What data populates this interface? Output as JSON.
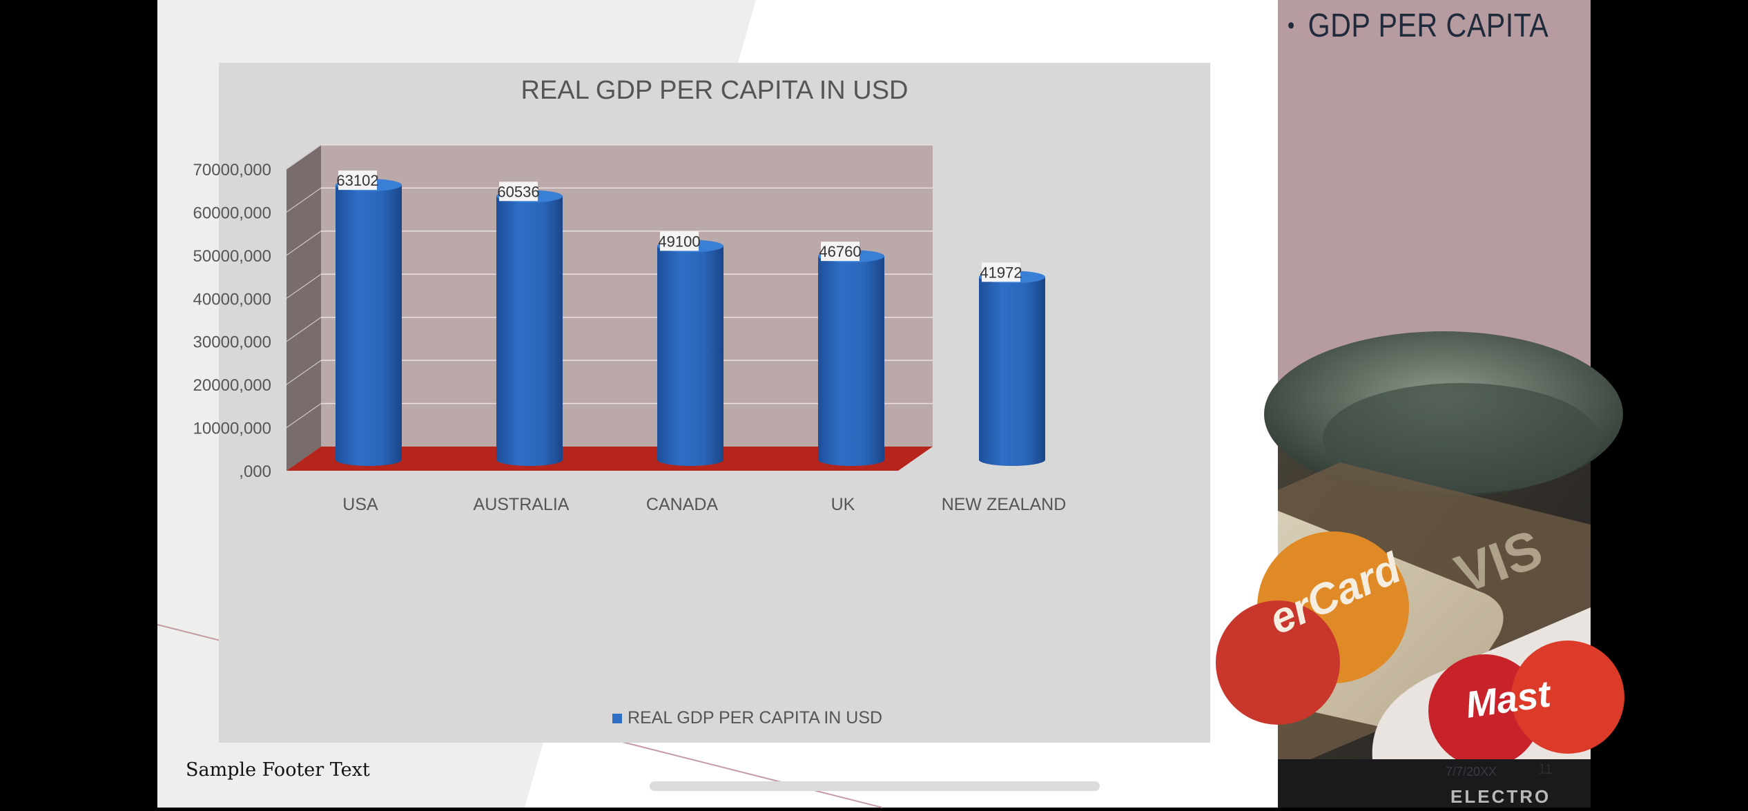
{
  "slide": {
    "bullet": "GDP PER CAPITA",
    "footer": "Sample Footer Text",
    "date": "7/7/20XX",
    "page_number": "11"
  },
  "photo": {
    "card_text_1": "erCard",
    "card_text_2": "VIS",
    "card_text_3": "Mast",
    "card_text_4": "ELECTRO"
  },
  "colors": {
    "bar": "#2f6fc7",
    "floor": "#b5251b",
    "back_wall": "#bba9aa",
    "side_wall": "#786c6d",
    "chart_bg": "#d8d8d8",
    "right_panel": "#b69ca0"
  },
  "chart_data": {
    "type": "bar",
    "title": "REAL GDP PER CAPITA IN USD",
    "categories": [
      "USA",
      "AUSTRALIA",
      "CANADA",
      "UK",
      "NEW ZEALAND"
    ],
    "series": [
      {
        "name": "REAL GDP PER CAPITA IN USD",
        "values": [
          63102,
          60536,
          49100,
          46760,
          41972
        ]
      }
    ],
    "data_labels": [
      "63102",
      "60536",
      "49100",
      "46760",
      "41972"
    ],
    "ylim": [
      0,
      70000
    ],
    "yticks": [
      ",000",
      "10000,000",
      "20000,000",
      "30000,000",
      "40000,000",
      "50000,000",
      "60000,000",
      "70000,000"
    ],
    "grid": true,
    "legend_position": "bottom",
    "style": "3d-cylinder"
  }
}
